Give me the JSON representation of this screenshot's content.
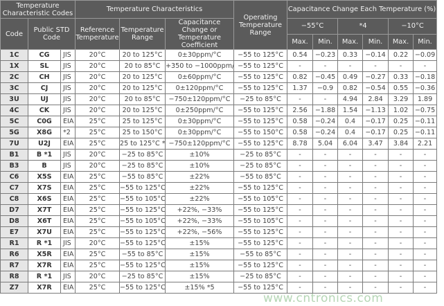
{
  "header": {
    "codes_group": "Temperature Characteristic Codes",
    "code": "Code",
    "public_std": "Public STD Code",
    "temp_group": "Temperature Characteristics",
    "ref_temp": "Reference Temperature",
    "temp_range": "Temperature Range",
    "cap_change": "Capacitance Change or Temperature Coefficient",
    "op_range": "Operating Temperature Range",
    "cap_each": "Capacitance Change Each Temperature (%)",
    "t1": "−55°C",
    "t2": "*4",
    "t3": "−10°C",
    "max": "Max.",
    "min": "Min."
  },
  "rows": [
    [
      "1C",
      "CG",
      "JIS",
      "20°C",
      "20 to 125°C",
      "0±30ppm/°C",
      "−55 to 125°C",
      "0.54",
      "−0.23",
      "0.33",
      "−0.14",
      "0.22",
      "−0.09"
    ],
    [
      "1X",
      "SL",
      "JIS",
      "20°C",
      "20 to 85°C",
      "+350 to −1000ppm/°C",
      "−55 to 125°C",
      "-",
      "-",
      "-",
      "-",
      "-",
      "-"
    ],
    [
      "2C",
      "CH",
      "JIS",
      "20°C",
      "20 to 125°C",
      "0±60ppm/°C",
      "−55 to 125°C",
      "0.82",
      "−0.45",
      "0.49",
      "−0.27",
      "0.33",
      "−0.18"
    ],
    [
      "3C",
      "CJ",
      "JIS",
      "20°C",
      "20 to 125°C",
      "0±120ppm/°C",
      "−55 to 125°C",
      "1.37",
      "−0.9",
      "0.82",
      "−0.54",
      "0.55",
      "−0.36"
    ],
    [
      "3U",
      "UJ",
      "JIS",
      "20°C",
      "20 to 85°C",
      "−750±120ppm/°C",
      "−25 to 85°C",
      "-",
      "-",
      "4.94",
      "2.84",
      "3.29",
      "1.89"
    ],
    [
      "4C",
      "CK",
      "JIS",
      "20°C",
      "20 to 125°C",
      "0±250ppm/°C",
      "−55 to 125°C",
      "2.56",
      "−1.88",
      "1.54",
      "−1.13",
      "1.02",
      "−0.75"
    ],
    [
      "5C",
      "C0G",
      "EIA",
      "25°C",
      "25 to 125°C",
      "0±30ppm/°C",
      "−55 to 125°C",
      "0.58",
      "−0.24",
      "0.4",
      "−0.17",
      "0.25",
      "−0.11"
    ],
    [
      "5G",
      "X8G",
      "*2",
      "25°C",
      "25 to 150°C",
      "0±30ppm/°C",
      "−55 to 150°C",
      "0.58",
      "−0.24",
      "0.4",
      "−0.17",
      "0.25",
      "−0.11"
    ],
    [
      "7U",
      "U2J",
      "EIA",
      "25°C",
      "25 to 125°C *3",
      "−750±120ppm/°C",
      "−55 to 125°C",
      "8.78",
      "5.04",
      "6.04",
      "3.47",
      "3.84",
      "2.21"
    ],
    [
      "B1",
      "B *1",
      "JIS",
      "20°C",
      "−25 to 85°C",
      "±10%",
      "−25 to 85°C",
      "-",
      "-",
      "-",
      "-",
      "-",
      "-"
    ],
    [
      "B3",
      "B",
      "JIS",
      "20°C",
      "−25 to 85°C",
      "±10%",
      "−25 to 85°C",
      "-",
      "-",
      "-",
      "-",
      "-",
      "-"
    ],
    [
      "C6",
      "X5S",
      "EIA",
      "25°C",
      "−55 to 85°C",
      "±22%",
      "−55 to 85°C",
      "-",
      "-",
      "-",
      "-",
      "-",
      "-"
    ],
    [
      "C7",
      "X7S",
      "EIA",
      "25°C",
      "−55 to 125°C",
      "±22%",
      "−55 to 125°C",
      "-",
      "-",
      "-",
      "-",
      "-",
      "-"
    ],
    [
      "C8",
      "X6S",
      "EIA",
      "25°C",
      "−55 to 105°C",
      "±22%",
      "−55 to 105°C",
      "-",
      "-",
      "-",
      "-",
      "-",
      "-"
    ],
    [
      "D7",
      "X7T",
      "EIA",
      "25°C",
      "−55 to 125°C",
      "+22%, −33%",
      "−55 to 125°C",
      "-",
      "-",
      "-",
      "-",
      "-",
      "-"
    ],
    [
      "D8",
      "X6T",
      "EIA",
      "25°C",
      "−55 to 105°C",
      "+22%, −33%",
      "−55 to 105°C",
      "-",
      "-",
      "-",
      "-",
      "-",
      "-"
    ],
    [
      "E7",
      "X7U",
      "EIA",
      "25°C",
      "−55 to 125°C",
      "+22%, −56%",
      "−55 to 125°C",
      "-",
      "-",
      "-",
      "-",
      "-",
      "-"
    ],
    [
      "R1",
      "R *1",
      "JIS",
      "20°C",
      "−55 to 125°C",
      "±15%",
      "−55 to 125°C",
      "-",
      "-",
      "-",
      "-",
      "-",
      "-"
    ],
    [
      "R6",
      "X5R",
      "EIA",
      "25°C",
      "−55 to 85°C",
      "±15%",
      "−55 to 85°C",
      "-",
      "-",
      "-",
      "-",
      "-",
      "-"
    ],
    [
      "R7",
      "X7R",
      "EIA",
      "25°C",
      "−55 to 125°C",
      "±15%",
      "−55 to 125°C",
      "-",
      "-",
      "-",
      "-",
      "-",
      "-"
    ],
    [
      "R8",
      "R *1",
      "JIS",
      "20°C",
      "−25 to 85°C",
      "±15%",
      "−25 to 85°C",
      "-",
      "-",
      "-",
      "-",
      "-",
      "-"
    ],
    [
      "Z7",
      "X7R",
      "EIA",
      "25°C",
      "−55 to 125°C",
      "±15% *5",
      "−55 to 125°C",
      "-",
      "-",
      "-",
      "-",
      "-",
      "-"
    ]
  ],
  "watermark": "www.cntronics.com",
  "colors": {
    "header_bg": "#5b5b5b",
    "code_bg": "#e6e6e6"
  }
}
